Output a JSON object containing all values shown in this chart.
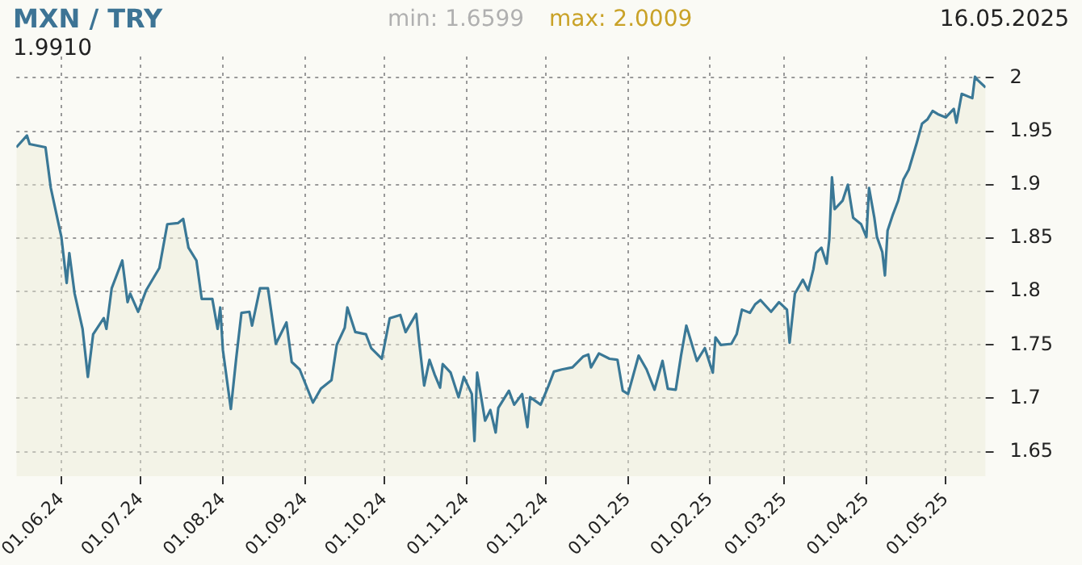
{
  "chart_data": {
    "type": "area",
    "title": "MXN / TRY",
    "annotations": [
      "min: 1.6599",
      "max: 2.0009",
      "16.05.2025",
      "1.9910"
    ],
    "x": [
      "2024-05-15",
      "2024-05-19",
      "2024-05-20",
      "2024-05-26",
      "2024-05-28",
      "2024-06-01",
      "2024-06-03",
      "2024-06-04",
      "2024-06-06",
      "2024-06-09",
      "2024-06-11",
      "2024-06-13",
      "2024-06-17",
      "2024-06-18",
      "2024-06-20",
      "2024-06-24",
      "2024-06-26",
      "2024-06-27",
      "2024-06-30",
      "2024-07-03",
      "2024-07-08",
      "2024-07-11",
      "2024-07-15",
      "2024-07-17",
      "2024-07-19",
      "2024-07-22",
      "2024-07-24",
      "2024-07-28",
      "2024-07-30",
      "2024-07-31",
      "2024-08-01",
      "2024-08-04",
      "2024-08-06",
      "2024-08-08",
      "2024-08-11",
      "2024-08-12",
      "2024-08-15",
      "2024-08-18",
      "2024-08-21",
      "2024-08-25",
      "2024-08-27",
      "2024-08-30",
      "2024-09-04",
      "2024-09-07",
      "2024-09-11",
      "2024-09-13",
      "2024-09-16",
      "2024-09-17",
      "2024-09-20",
      "2024-09-24",
      "2024-09-26",
      "2024-09-30",
      "2024-10-03",
      "2024-10-07",
      "2024-10-09",
      "2024-10-13",
      "2024-10-14",
      "2024-10-16",
      "2024-10-18",
      "2024-10-20",
      "2024-10-22",
      "2024-10-23",
      "2024-10-26",
      "2024-10-29",
      "2024-10-31",
      "2024-11-03",
      "2024-11-04",
      "2024-11-05",
      "2024-11-08",
      "2024-11-10",
      "2024-11-12",
      "2024-11-13",
      "2024-11-17",
      "2024-11-19",
      "2024-11-22",
      "2024-11-24",
      "2024-11-25",
      "2024-11-29",
      "2024-12-02",
      "2024-12-04",
      "2024-12-07",
      "2024-12-11",
      "2024-12-15",
      "2024-12-17",
      "2024-12-18",
      "2024-12-21",
      "2024-12-25",
      "2024-12-28",
      "2024-12-30",
      "2025-01-01",
      "2025-01-05",
      "2025-01-08",
      "2025-01-11",
      "2025-01-14",
      "2025-01-16",
      "2025-01-19",
      "2025-01-21",
      "2025-01-23",
      "2025-01-27",
      "2025-01-30",
      "2025-02-02",
      "2025-02-03",
      "2025-02-05",
      "2025-02-09",
      "2025-02-11",
      "2025-02-13",
      "2025-02-16",
      "2025-02-18",
      "2025-02-20",
      "2025-02-24",
      "2025-02-27",
      "2025-03-02",
      "2025-03-03",
      "2025-03-05",
      "2025-03-08",
      "2025-03-10",
      "2025-03-12",
      "2025-03-13",
      "2025-03-15",
      "2025-03-17",
      "2025-03-18",
      "2025-03-19",
      "2025-03-20",
      "2025-03-23",
      "2025-03-25",
      "2025-03-27",
      "2025-03-30",
      "2025-04-01",
      "2025-04-02",
      "2025-04-04",
      "2025-04-05",
      "2025-04-07",
      "2025-04-08",
      "2025-04-09",
      "2025-04-11",
      "2025-04-13",
      "2025-04-15",
      "2025-04-17",
      "2025-04-20",
      "2025-04-22",
      "2025-04-24",
      "2025-04-26",
      "2025-04-28",
      "2025-05-01",
      "2025-05-04",
      "2025-05-05",
      "2025-05-07",
      "2025-05-11",
      "2025-05-12",
      "2025-05-13",
      "2025-05-16"
    ],
    "series": [
      {
        "color": "#3a7896",
        "values": [
          1.935,
          1.946,
          1.938,
          1.935,
          1.897,
          1.851,
          1.808,
          1.836,
          1.798,
          1.765,
          1.72,
          1.76,
          1.775,
          1.765,
          1.803,
          1.829,
          1.79,
          1.798,
          1.781,
          1.801,
          1.822,
          1.863,
          1.864,
          1.868,
          1.841,
          1.829,
          1.793,
          1.793,
          1.765,
          1.785,
          1.745,
          1.69,
          1.737,
          1.78,
          1.781,
          1.768,
          1.803,
          1.803,
          1.751,
          1.771,
          1.734,
          1.727,
          1.696,
          1.709,
          1.717,
          1.75,
          1.766,
          1.785,
          1.762,
          1.76,
          1.747,
          1.737,
          1.775,
          1.778,
          1.762,
          1.779,
          1.755,
          1.712,
          1.736,
          1.722,
          1.71,
          1.732,
          1.724,
          1.701,
          1.72,
          1.704,
          1.66,
          1.724,
          1.679,
          1.689,
          1.668,
          1.691,
          1.707,
          1.694,
          1.704,
          1.673,
          1.701,
          1.694,
          1.712,
          1.725,
          1.727,
          1.729,
          1.739,
          1.741,
          1.729,
          1.742,
          1.737,
          1.736,
          1.707,
          1.704,
          1.74,
          1.727,
          1.708,
          1.735,
          1.709,
          1.708,
          1.74,
          1.768,
          1.735,
          1.747,
          1.724,
          1.757,
          1.75,
          1.751,
          1.76,
          1.783,
          1.78,
          1.788,
          1.792,
          1.781,
          1.79,
          1.783,
          1.752,
          1.798,
          1.811,
          1.801,
          1.821,
          1.836,
          1.841,
          1.826,
          1.849,
          1.907,
          1.877,
          1.885,
          1.9,
          1.869,
          1.863,
          1.851,
          1.897,
          1.869,
          1.851,
          1.837,
          1.815,
          1.857,
          1.872,
          1.885,
          1.905,
          1.914,
          1.939,
          1.957,
          1.961,
          1.969,
          1.966,
          1.963,
          1.971,
          1.958,
          1.985,
          1.981,
          2.001,
          1.998,
          1.991
        ]
      }
    ],
    "xlim": [
      "2024-05-15",
      "2025-05-16"
    ],
    "xticks": [
      {
        "value": "2024-06-01",
        "label": "01.06.24"
      },
      {
        "value": "2024-07-01",
        "label": "01.07.24"
      },
      {
        "value": "2024-08-01",
        "label": "01.08.24"
      },
      {
        "value": "2024-09-01",
        "label": "01.09.24"
      },
      {
        "value": "2024-10-01",
        "label": "01.10.24"
      },
      {
        "value": "2024-11-01",
        "label": "01.11.24"
      },
      {
        "value": "2024-12-01",
        "label": "01.12.24"
      },
      {
        "value": "2025-01-01",
        "label": "01.01.25"
      },
      {
        "value": "2025-02-01",
        "label": "01.02.25"
      },
      {
        "value": "2025-03-01",
        "label": "01.03.25"
      },
      {
        "value": "2025-04-01",
        "label": "01.04.25"
      },
      {
        "value": "2025-05-01",
        "label": "01.05.25"
      }
    ],
    "ylim": [
      1.627,
      2.02
    ],
    "yticks": [
      1.65,
      1.7,
      1.75,
      1.8,
      1.85,
      1.9,
      1.95,
      2
    ],
    "grid": true,
    "legend": false,
    "marker": "none",
    "line_style": "solid"
  }
}
